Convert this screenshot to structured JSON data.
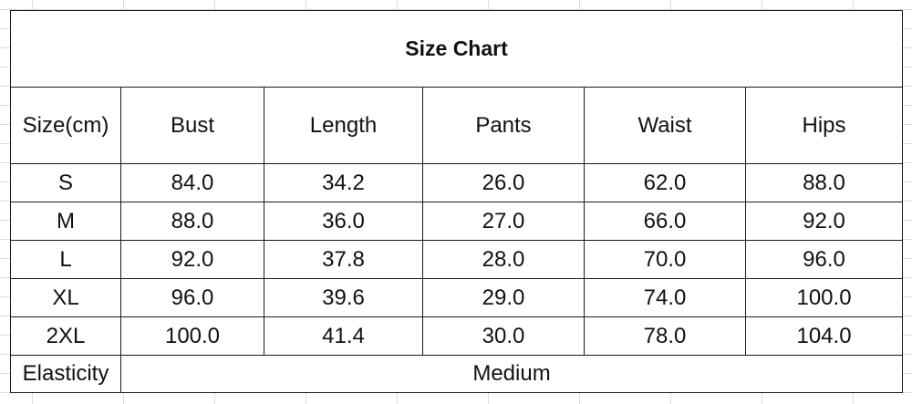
{
  "title": "Size Chart",
  "headers": [
    "Size(cm)",
    "Bust",
    "Length",
    "Pants",
    "Waist",
    "Hips"
  ],
  "rows": [
    [
      "S",
      "84.0",
      "34.2",
      "26.0",
      "62.0",
      "88.0"
    ],
    [
      "M",
      "88.0",
      "36.0",
      "27.0",
      "66.0",
      "92.0"
    ],
    [
      "L",
      "92.0",
      "37.8",
      "28.0",
      "70.0",
      "96.0"
    ],
    [
      "XL",
      "96.0",
      "39.6",
      "29.0",
      "74.0",
      "100.0"
    ],
    [
      "2XL",
      "100.0",
      "41.4",
      "30.0",
      "78.0",
      "104.0"
    ]
  ],
  "footer": {
    "label": "Elasticity",
    "value": "Medium"
  }
}
